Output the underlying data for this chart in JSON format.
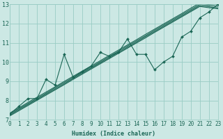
{
  "xlabel": "Humidex (Indice chaleur)",
  "xlim": [
    0,
    23
  ],
  "ylim": [
    7,
    13
  ],
  "bg_color": "#cce8e4",
  "grid_color": "#99ccc4",
  "line_color": "#1a6655",
  "xticks": [
    0,
    1,
    2,
    3,
    4,
    5,
    6,
    7,
    8,
    9,
    10,
    11,
    12,
    13,
    14,
    15,
    16,
    17,
    18,
    19,
    20,
    21,
    22,
    23
  ],
  "yticks": [
    7,
    8,
    9,
    10,
    11,
    12,
    13
  ],
  "series": [
    [
      7.35,
      7.62,
      7.9,
      8.17,
      8.44,
      8.71,
      8.99,
      9.26,
      9.53,
      9.8,
      10.07,
      10.35,
      10.62,
      10.89,
      11.16,
      11.44,
      11.71,
      11.98,
      12.25,
      12.52,
      12.8,
      13.07,
      13.0,
      13.0
    ],
    [
      7.3,
      7.57,
      7.84,
      8.11,
      8.38,
      8.66,
      8.93,
      9.2,
      9.47,
      9.74,
      10.01,
      10.29,
      10.56,
      10.83,
      11.1,
      11.37,
      11.65,
      11.92,
      12.19,
      12.46,
      12.73,
      13.0,
      12.95,
      12.9
    ],
    [
      7.25,
      7.52,
      7.79,
      8.06,
      8.33,
      8.6,
      8.87,
      9.15,
      9.42,
      9.69,
      9.96,
      10.23,
      10.5,
      10.77,
      11.04,
      11.32,
      11.59,
      11.86,
      12.13,
      12.4,
      12.67,
      12.94,
      12.88,
      12.82
    ],
    [
      7.2,
      7.47,
      7.74,
      8.01,
      8.28,
      8.55,
      8.82,
      9.1,
      9.37,
      9.64,
      9.91,
      10.18,
      10.45,
      10.72,
      10.99,
      11.26,
      11.54,
      11.81,
      12.08,
      12.35,
      12.62,
      12.89,
      12.83,
      12.77
    ],
    [
      7.3,
      7.7,
      8.1,
      8.1,
      9.1,
      8.8,
      10.4,
      9.2,
      9.5,
      9.8,
      10.5,
      10.3,
      10.5,
      11.2,
      10.4,
      10.4,
      9.6,
      10.0,
      10.3,
      11.3,
      11.6,
      12.3,
      12.6,
      13.0
    ]
  ]
}
